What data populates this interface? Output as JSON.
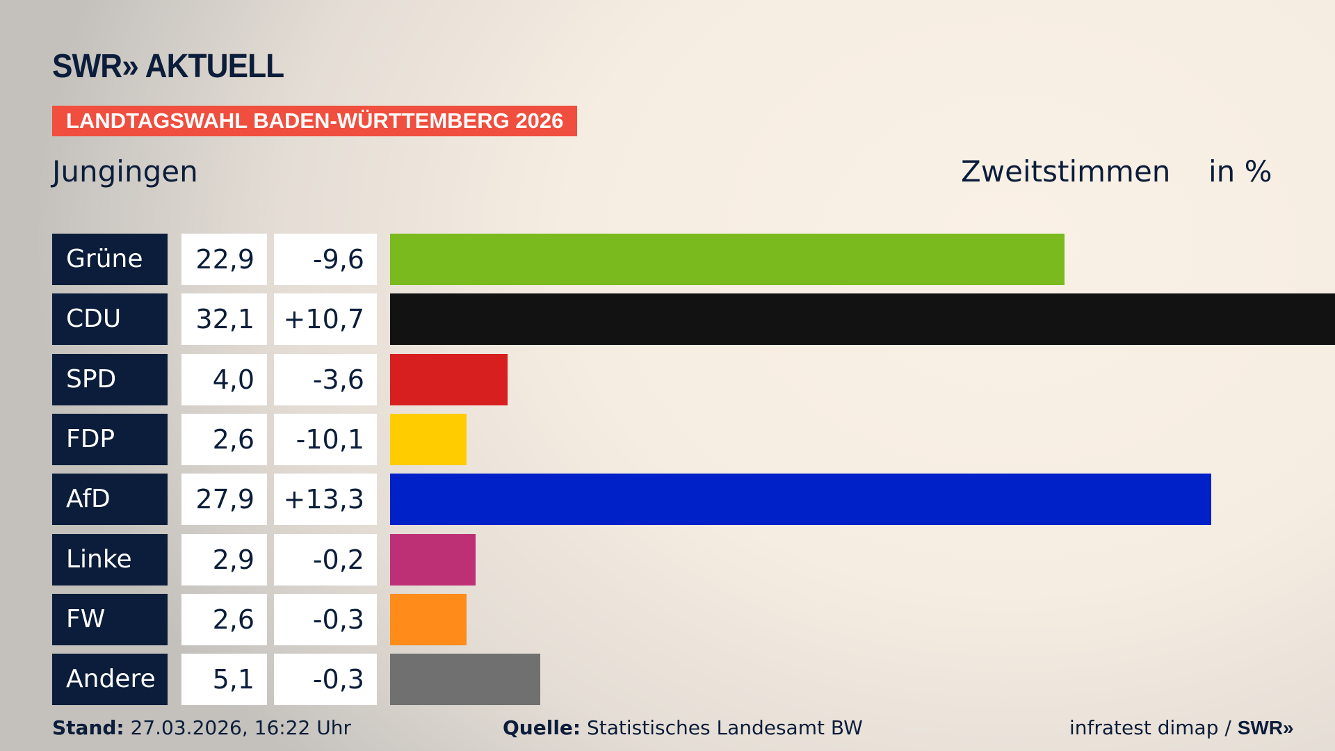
{
  "logo": "SWR» AKTUELL",
  "banner": "LANDTAGSWAHL BADEN-WÜRTTEMBERG 2026",
  "place": "Jungingen",
  "header_type": "Zweitstimmen",
  "header_unit": "in %",
  "chart_data": {
    "type": "bar",
    "orientation": "horizontal",
    "categories": [
      "Grüne",
      "CDU",
      "SPD",
      "FDP",
      "AfD",
      "Linke",
      "FW",
      "Andere"
    ],
    "values": [
      22.9,
      32.1,
      4.0,
      2.6,
      27.9,
      2.9,
      2.6,
      5.1
    ],
    "value_labels": [
      "22,9",
      "32,1",
      "4,0",
      "2,6",
      "27,9",
      "2,9",
      "2,6",
      "5,1"
    ],
    "diff_labels": [
      "-9,6",
      "+10,7",
      "-3,6",
      "-10,1",
      "+13,3",
      "-0,2",
      "-0,3",
      "-0,3"
    ],
    "colors": [
      "#7aba1e",
      "#121212",
      "#d71f1f",
      "#ffcc00",
      "#0020c8",
      "#be3075",
      "#ff8c1a",
      "#707070"
    ]
  },
  "footer": {
    "stand_label": "Stand:",
    "stand": " 27.03.2026, 16:22 Uhr",
    "source_label": "Quelle:",
    "source": " Statistisches Landesamt BW",
    "credit": "infratest dimap / ",
    "credit_logo": "SWR»"
  }
}
